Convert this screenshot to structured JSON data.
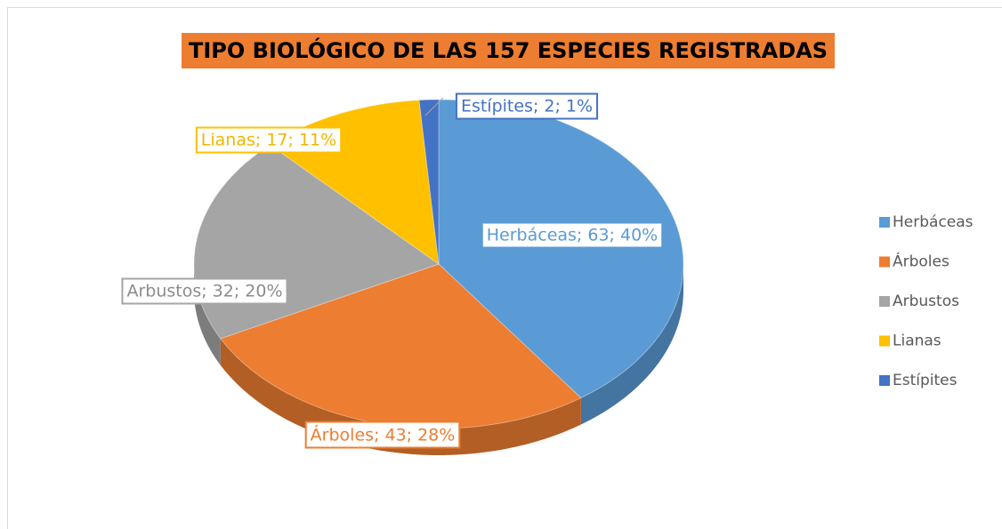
{
  "chart_data": {
    "type": "pie",
    "title": "TIPO BIOLÓGICO DE LAS 157 ESPECIES REGISTRADAS",
    "categories": [
      "Herbáceas",
      "Árboles",
      "Arbustos",
      "Lianas",
      "Estípites"
    ],
    "values": [
      63,
      43,
      32,
      17,
      2
    ],
    "value_labels": [
      "Herbáceas; 63; 40%",
      "Árboles; 43; 28%",
      "Arbustos; 32; 20%",
      "Lianas; 17; 11%",
      "Estípites; 2; 1%"
    ],
    "colors": [
      "#5b9bd5",
      "#ed7d31",
      "#a5a5a5",
      "#ffc000",
      "#4472c4"
    ],
    "legend": "right"
  }
}
